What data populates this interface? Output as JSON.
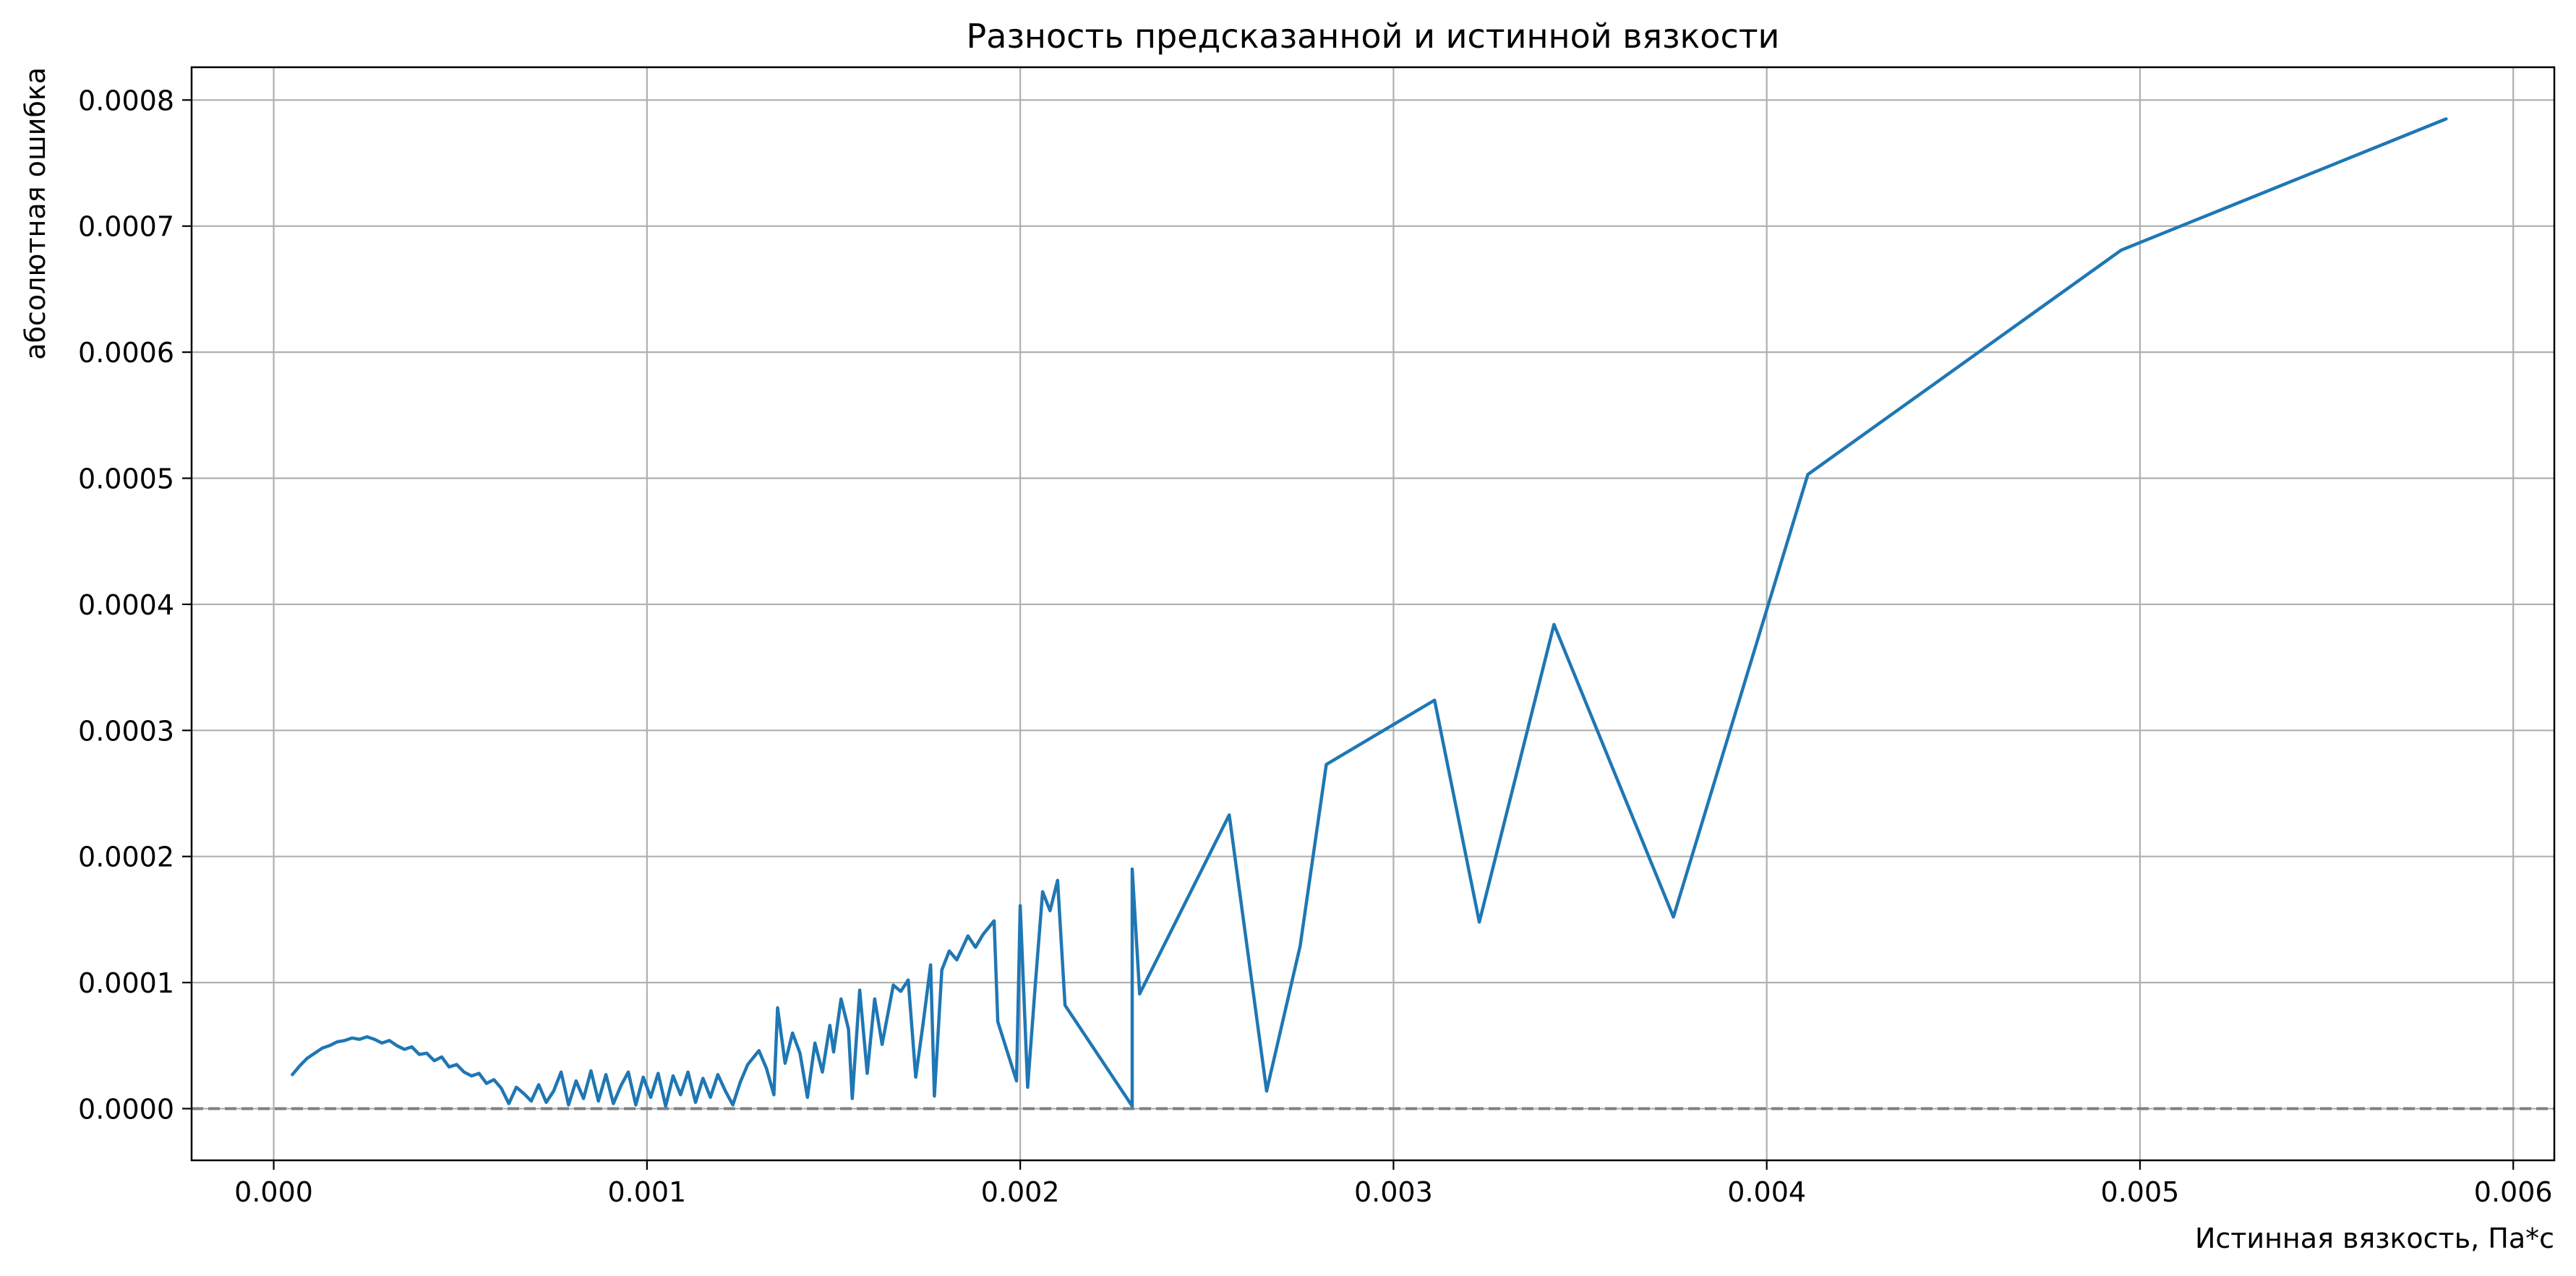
{
  "chart_data": {
    "type": "line",
    "title": "Разность предсказанной и истинной вязкости",
    "xlabel": "Истинная вязкость, Па*с",
    "ylabel": "абсолютная ошибка",
    "xlim": [
      -0.00022,
      0.00611
    ],
    "ylim": [
      -4.1e-05,
      0.000826
    ],
    "xticks": [
      0.0,
      0.001,
      0.002,
      0.003,
      0.004,
      0.005,
      0.006
    ],
    "xtick_labels": [
      "0.000",
      "0.001",
      "0.002",
      "0.003",
      "0.004",
      "0.005",
      "0.006"
    ],
    "yticks": [
      0.0,
      0.0001,
      0.0002,
      0.0003,
      0.0004,
      0.0005,
      0.0006,
      0.0007,
      0.0008
    ],
    "ytick_labels": [
      "0.0000",
      "0.0001",
      "0.0002",
      "0.0003",
      "0.0004",
      "0.0005",
      "0.0006",
      "0.0007",
      "0.0008"
    ],
    "grid": true,
    "reference_line": {
      "y": 0,
      "style": "dashed",
      "color": "#808080"
    },
    "series": [
      {
        "color": "#1f77b4",
        "x": [
          5e-05,
          7e-05,
          9e-05,
          0.00011,
          0.00013,
          0.00015,
          0.00017,
          0.00019,
          0.00021,
          0.00023,
          0.00025,
          0.00027,
          0.00029,
          0.00031,
          0.00033,
          0.00035,
          0.00037,
          0.00039,
          0.00041,
          0.00043,
          0.00045,
          0.00047,
          0.00049,
          0.00051,
          0.00053,
          0.00055,
          0.00057,
          0.00059,
          0.00061,
          0.00063,
          0.00065,
          0.00067,
          0.00069,
          0.00071,
          0.00073,
          0.00075,
          0.00077,
          0.00079,
          0.00081,
          0.00083,
          0.00085,
          0.00087,
          0.00089,
          0.00091,
          0.00093,
          0.00095,
          0.00097,
          0.00099,
          0.00101,
          0.00103,
          0.00105,
          0.00107,
          0.00109,
          0.00111,
          0.00113,
          0.00115,
          0.00117,
          0.00119,
          0.00121,
          0.00123,
          0.00125,
          0.00127,
          0.0013,
          0.00132,
          0.00134,
          0.00135,
          0.00137,
          0.00139,
          0.00141,
          0.00143,
          0.00145,
          0.00147,
          0.00149,
          0.0015,
          0.00152,
          0.00154,
          0.00155,
          0.00157,
          0.00159,
          0.00161,
          0.00163,
          0.00166,
          0.00168,
          0.0017,
          0.00172,
          0.00174,
          0.00176,
          0.00177,
          0.00179,
          0.00181,
          0.00183,
          0.00186,
          0.00188,
          0.0019,
          0.00193,
          0.00194,
          0.00199,
          0.002,
          0.00202,
          0.00204,
          0.00206,
          0.00208,
          0.0021,
          0.00212,
          0.0023,
          0.0023,
          0.00232,
          0.00256,
          0.00266,
          0.00275,
          0.00282,
          0.00311,
          0.00323,
          0.00343,
          0.00375,
          0.00411,
          0.00495,
          0.00582
        ],
        "y": [
          2.7e-05,
          3.4e-05,
          4e-05,
          4.4e-05,
          4.8e-05,
          5e-05,
          5.3e-05,
          5.4e-05,
          5.6e-05,
          5.5e-05,
          5.7e-05,
          5.5e-05,
          5.2e-05,
          5.4e-05,
          5e-05,
          4.7e-05,
          4.9e-05,
          4.3e-05,
          4.4e-05,
          3.8e-05,
          4.1e-05,
          3.3e-05,
          3.5e-05,
          2.9e-05,
          2.6e-05,
          2.8e-05,
          2e-05,
          2.3e-05,
          1.6e-05,
          4e-06,
          1.7e-05,
          1.2e-05,
          6e-06,
          1.9e-05,
          5e-06,
          1.4e-05,
          2.9e-05,
          3e-06,
          2.2e-05,
          8e-06,
          3e-05,
          6e-06,
          2.7e-05,
          4e-06,
          1.8e-05,
          2.9e-05,
          3e-06,
          2.5e-05,
          9e-06,
          2.8e-05,
          2e-06,
          2.6e-05,
          1.1e-05,
          2.9e-05,
          5e-06,
          2.4e-05,
          9e-06,
          2.7e-05,
          1.4e-05,
          3e-06,
          2.1e-05,
          3.5e-05,
          4.6e-05,
          3.2e-05,
          1.1e-05,
          8e-05,
          3.6e-05,
          6e-05,
          4.4e-05,
          9e-06,
          5.2e-05,
          2.9e-05,
          6.6e-05,
          4.5e-05,
          8.7e-05,
          6.3e-05,
          8e-06,
          9.4e-05,
          2.8e-05,
          8.7e-05,
          5.1e-05,
          9.8e-05,
          9.3e-05,
          0.000102,
          2.5e-05,
          6.8e-05,
          0.000114,
          1e-05,
          0.00011,
          0.000125,
          0.000118,
          0.000137,
          0.000128,
          0.000138,
          0.000149,
          6.9e-05,
          2.2e-05,
          0.000161,
          1.7e-05,
          9.7e-05,
          0.000172,
          0.000157,
          0.000181,
          8.2e-05,
          2e-06,
          0.00019,
          9.1e-05,
          0.000233,
          1.4e-05,
          0.000129,
          0.000273,
          0.000324,
          0.000148,
          0.000384,
          0.000152,
          0.000503,
          0.000681,
          0.000785
        ]
      }
    ]
  }
}
